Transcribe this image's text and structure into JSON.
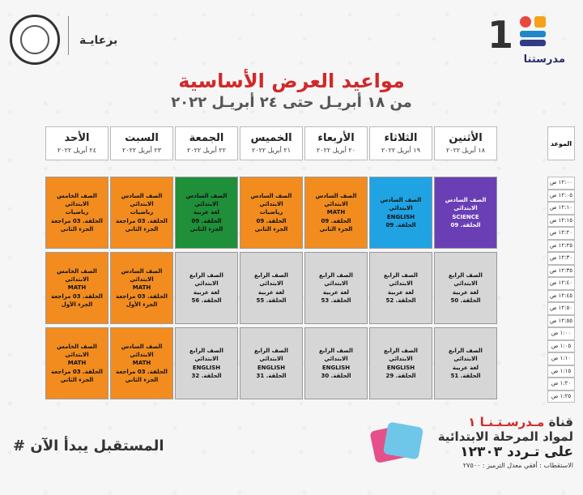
{
  "header": {
    "logo_name": "مدرستنا",
    "channel_number": "1",
    "sponsor_label": "برعايـة",
    "title": "مواعيد العرض الأساسية",
    "subtitle": "من ١٨ أبريـل حتى ٢٤ أبريـل ٢٠٢٢"
  },
  "table": {
    "time_header": "الموعد",
    "days": [
      {
        "name": "الأحد",
        "date": "٢٤ أبريل ٢٠٢٢"
      },
      {
        "name": "السبت",
        "date": "٢٣ أبريل ٢٠٢٢"
      },
      {
        "name": "الجمعة",
        "date": "٢٢ أبريل ٢٠٢٢"
      },
      {
        "name": "الخميس",
        "date": "٢١ أبريل ٢٠٢٢"
      },
      {
        "name": "الأربعاء",
        "date": "٢٠ أبريل ٢٠٢٢"
      },
      {
        "name": "الثلاثاء",
        "date": "١٩ أبريل ٢٠٢٢"
      },
      {
        "name": "الأثنين",
        "date": "١٨ أبريل ٢٠٢٢"
      }
    ],
    "times": [
      "١٢:٠٠ ص",
      "١٢:٠٥ ص",
      "١٢:١٠ ص",
      "١٢:١٥ ص",
      "١٢:٢٠ ص",
      "١٢:٢٥ ص",
      "١٢:٣٠ ص",
      "١٢:٣٥ ص",
      "١٢:٤٠ ص",
      "١٢:٤٥ ص",
      "١٢:٥٠ ص",
      "١٢:٥٥ ص",
      "١:٠٠ ص",
      "١:٠٥ ص",
      "١:١٠ ص",
      "١:١٥ ص",
      "١:٢٠ ص",
      "١:٢٥ ص"
    ],
    "rows": [
      [
        {
          "color": "orange",
          "lines": [
            "الصف الخامس الابتدائي",
            "رياضيات",
            "الحلقة. 03 مراجعة",
            "الجزء الثاني"
          ]
        },
        {
          "color": "orange",
          "lines": [
            "الصف السادس الابتدائي",
            "رياضيات",
            "الحلقة. 03 مراجعة",
            "الجزء الثاني"
          ]
        },
        {
          "color": "green",
          "lines": [
            "الصف السادس الابتدائي",
            "لغة عربية",
            "الحلقة. 09",
            "الجزء الثاني"
          ]
        },
        {
          "color": "orange",
          "lines": [
            "الصف السادس الابتدائي",
            "رياضيات",
            "الحلقة. 09",
            "الجزء الثاني"
          ]
        },
        {
          "color": "orange",
          "lines": [
            "الصف السادس الابتدائي",
            "MATH",
            "الحلقة. 09",
            "الجزء الثاني"
          ]
        },
        {
          "color": "blue",
          "lines": [
            "الصف السادس الابتدائي",
            "ENGLISH",
            "الحلقة. 09"
          ]
        },
        {
          "color": "purple",
          "lines": [
            "الصف السادس الابتدائي",
            "SCIENCE",
            "الحلقة. 09"
          ]
        }
      ],
      [
        {
          "color": "orange",
          "lines": [
            "الصف الخامس الابتدائي",
            "MATH",
            "الحلقة. 03 مراجعة",
            "الجزء الأول"
          ]
        },
        {
          "color": "orange",
          "lines": [
            "الصف السادس الابتدائي",
            "MATH",
            "الحلقة. 03 مراجعة",
            "الجزء الأول"
          ]
        },
        {
          "color": "gray",
          "lines": [
            "الصف الرابع الابتدائي",
            "لغة عربية",
            "الحلقة. 56"
          ]
        },
        {
          "color": "gray",
          "lines": [
            "الصف الرابع الابتدائي",
            "لغة عربية",
            "الحلقة. 55"
          ]
        },
        {
          "color": "gray",
          "lines": [
            "الصف الرابع الابتدائي",
            "لغة عربية",
            "الحلقة. 53"
          ]
        },
        {
          "color": "gray",
          "lines": [
            "الصف الرابع الابتدائي",
            "لغة عربية",
            "الحلقة. 52"
          ]
        },
        {
          "color": "gray",
          "lines": [
            "الصف الرابع الابتدائي",
            "لغة عربية",
            "الحلقة. 50"
          ]
        }
      ],
      [
        {
          "color": "orange",
          "lines": [
            "الصف الخامس الابتدائي",
            "MATH",
            "الحلقة. 03 مراجعة",
            "الجزء الثاني"
          ]
        },
        {
          "color": "orange",
          "lines": [
            "الصف السادس الابتدائي",
            "MATH",
            "الحلقة. 03 مراجعة",
            "الجزء الثاني"
          ]
        },
        {
          "color": "gray",
          "lines": [
            "الصف الرابع الابتدائي",
            "ENGLISH",
            "الحلقة. 32"
          ]
        },
        {
          "color": "gray",
          "lines": [
            "الصف الرابع الابتدائي",
            "ENGLISH",
            "الحلقة. 31"
          ]
        },
        {
          "color": "gray",
          "lines": [
            "الصف الرابع الابتدائي",
            "ENGLISH",
            "الحلقة. 30"
          ]
        },
        {
          "color": "gray",
          "lines": [
            "الصف الرابع الابتدائي",
            "ENGLISH",
            "الحلقة. 29"
          ]
        },
        {
          "color": "gray",
          "lines": [
            "الصف الرابع الابتدائي",
            "لغة عربية",
            "الحلقة. 51"
          ]
        }
      ]
    ]
  },
  "footer": {
    "slogan": "# المستقبل يبدأ الآن",
    "channel_prefix": "قناة",
    "channel_brand": "مـدرسـتـنـا ١",
    "channel_line2": "لمواد المرحلة الابتدائية",
    "channel_line3": "على تـردد ١٢٣٠٣",
    "channel_line4": "الاستقطاب : أفقي معدل الترميز : ٢٧٥٠٠"
  }
}
